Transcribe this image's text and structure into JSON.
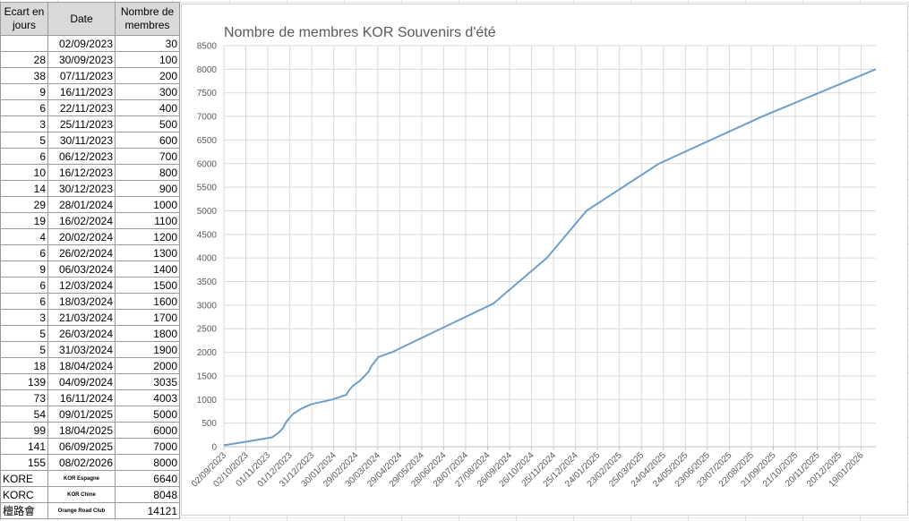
{
  "table": {
    "header": [
      "Ecart en jours",
      "Date",
      "Nombre de membres"
    ],
    "rows": [
      [
        null,
        "02/09/2023",
        30
      ],
      [
        28,
        "30/09/2023",
        100
      ],
      [
        38,
        "07/11/2023",
        200
      ],
      [
        9,
        "16/11/2023",
        300
      ],
      [
        6,
        "22/11/2023",
        400
      ],
      [
        3,
        "25/11/2023",
        500
      ],
      [
        5,
        "30/11/2023",
        600
      ],
      [
        6,
        "06/12/2023",
        700
      ],
      [
        10,
        "16/12/2023",
        800
      ],
      [
        14,
        "30/12/2023",
        900
      ],
      [
        29,
        "28/01/2024",
        1000
      ],
      [
        19,
        "16/02/2024",
        1100
      ],
      [
        4,
        "20/02/2024",
        1200
      ],
      [
        6,
        "26/02/2024",
        1300
      ],
      [
        9,
        "06/03/2024",
        1400
      ],
      [
        6,
        "12/03/2024",
        1500
      ],
      [
        6,
        "18/03/2024",
        1600
      ],
      [
        3,
        "21/03/2024",
        1700
      ],
      [
        5,
        "26/03/2024",
        1800
      ],
      [
        5,
        "31/03/2024",
        1900
      ],
      [
        18,
        "18/04/2024",
        2000
      ],
      [
        139,
        "04/09/2024",
        3035
      ],
      [
        73,
        "16/11/2024",
        4003
      ],
      [
        54,
        "09/01/2025",
        5000
      ],
      [
        99,
        "18/04/2025",
        6000
      ],
      [
        141,
        "06/09/2025",
        7000
      ],
      [
        155,
        "08/02/2026",
        8000
      ],
      [
        "KORE",
        "KOR Espagne",
        6640
      ],
      [
        "KORC",
        "KOR Chine",
        8048
      ],
      [
        "檀路會",
        "Orange Road Club",
        14121
      ]
    ]
  },
  "chart_data": {
    "type": "line",
    "title": "Nombre de membres KOR Souvenirs d'été",
    "x": [
      "02/09/2023",
      "30/09/2023",
      "07/11/2023",
      "16/11/2023",
      "22/11/2023",
      "25/11/2023",
      "30/11/2023",
      "06/12/2023",
      "16/12/2023",
      "30/12/2023",
      "28/01/2024",
      "16/02/2024",
      "20/02/2024",
      "26/02/2024",
      "06/03/2024",
      "12/03/2024",
      "18/03/2024",
      "21/03/2024",
      "26/03/2024",
      "31/03/2024",
      "18/04/2024",
      "04/09/2024",
      "16/11/2024",
      "09/01/2025",
      "18/04/2025",
      "06/09/2025",
      "08/02/2026"
    ],
    "values": [
      30,
      100,
      200,
      300,
      400,
      500,
      600,
      700,
      800,
      900,
      1000,
      1100,
      1200,
      1300,
      1400,
      1500,
      1600,
      1700,
      1800,
      1900,
      2000,
      3035,
      4003,
      5000,
      6000,
      7000,
      8000
    ],
    "color": "#6b9fcb",
    "xlim": [
      "02/09/2023",
      "08/02/2026"
    ],
    "xticks": [
      "02/09/2023",
      "02/10/2023",
      "01/11/2023",
      "01/12/2023",
      "31/12/2023",
      "30/01/2024",
      "29/02/2024",
      "30/03/2024",
      "29/04/2024",
      "29/05/2024",
      "28/06/2024",
      "28/07/2024",
      "27/08/2024",
      "26/09/2024",
      "26/10/2024",
      "25/11/2024",
      "25/12/2024",
      "24/01/2025",
      "23/02/2025",
      "25/03/2025",
      "24/04/2025",
      "24/05/2025",
      "23/06/2025",
      "23/07/2025",
      "22/08/2025",
      "21/09/2025",
      "21/10/2025",
      "20/11/2025",
      "20/12/2025",
      "19/01/2026"
    ],
    "ylim": [
      0,
      8500
    ],
    "yticks": [
      0,
      500,
      1000,
      1500,
      2000,
      2500,
      3000,
      3500,
      4000,
      4500,
      5000,
      5500,
      6000,
      6500,
      7000,
      7500,
      8000,
      8500
    ],
    "grid": true
  }
}
